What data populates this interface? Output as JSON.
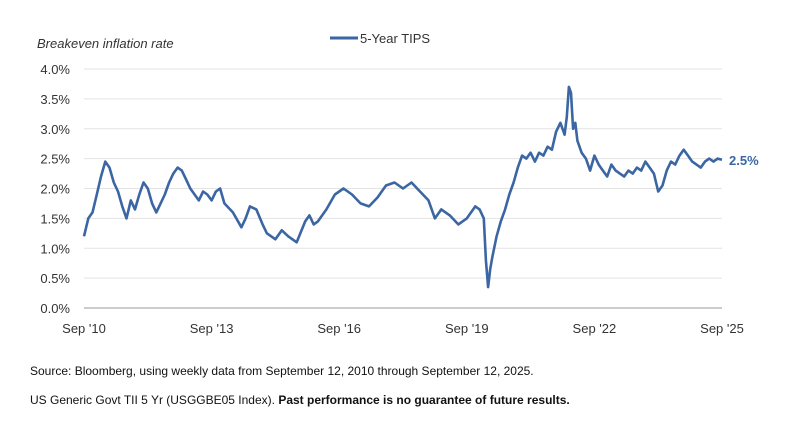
{
  "chart_data": {
    "type": "line",
    "ylabel": "Breakeven inflation rate",
    "xlabel": "",
    "title": "",
    "legend": {
      "position": "top-center",
      "entries": [
        "5-Year TIPS"
      ]
    },
    "ylim": [
      0.0,
      4.0
    ],
    "y_ticks": [
      "0.0%",
      "0.5%",
      "1.0%",
      "1.5%",
      "2.0%",
      "2.5%",
      "3.0%",
      "3.5%",
      "4.0%"
    ],
    "y_tick_values": [
      0.0,
      0.5,
      1.0,
      1.5,
      2.0,
      2.5,
      3.0,
      3.5,
      4.0
    ],
    "xlim": [
      2010.7,
      2025.7
    ],
    "x_ticks": [
      "Sep '10",
      "Sep '13",
      "Sep '16",
      "Sep '19",
      "Sep '22",
      "Sep '25"
    ],
    "x_tick_values": [
      2010.7,
      2013.7,
      2016.7,
      2019.7,
      2022.7,
      2025.7
    ],
    "grid": "horizontal",
    "color": "#3b66a3",
    "end_label": "2.5%",
    "series": [
      {
        "name": "5-Year TIPS",
        "x": [
          2010.7,
          2010.8,
          2010.9,
          2011.0,
          2011.1,
          2011.2,
          2011.3,
          2011.4,
          2011.5,
          2011.6,
          2011.7,
          2011.8,
          2011.9,
          2012.0,
          2012.1,
          2012.2,
          2012.3,
          2012.4,
          2012.5,
          2012.6,
          2012.7,
          2012.8,
          2012.9,
          2013.0,
          2013.1,
          2013.2,
          2013.3,
          2013.4,
          2013.5,
          2013.6,
          2013.7,
          2013.8,
          2013.9,
          2014.0,
          2014.2,
          2014.4,
          2014.5,
          2014.6,
          2014.75,
          2014.9,
          2015.0,
          2015.2,
          2015.35,
          2015.5,
          2015.7,
          2015.9,
          2016.0,
          2016.1,
          2016.2,
          2016.4,
          2016.6,
          2016.8,
          2017.0,
          2017.2,
          2017.4,
          2017.6,
          2017.8,
          2018.0,
          2018.2,
          2018.4,
          2018.6,
          2018.8,
          2018.95,
          2019.1,
          2019.3,
          2019.5,
          2019.7,
          2019.9,
          2020.0,
          2020.1,
          2020.15,
          2020.2,
          2020.25,
          2020.3,
          2020.4,
          2020.5,
          2020.6,
          2020.7,
          2020.8,
          2020.9,
          2021.0,
          2021.1,
          2021.2,
          2021.3,
          2021.4,
          2021.5,
          2021.6,
          2021.7,
          2021.8,
          2021.9,
          2022.0,
          2022.05,
          2022.1,
          2022.15,
          2022.2,
          2022.25,
          2022.3,
          2022.4,
          2022.5,
          2022.6,
          2022.7,
          2022.8,
          2022.9,
          2023.0,
          2023.1,
          2023.2,
          2023.3,
          2023.4,
          2023.5,
          2023.6,
          2023.7,
          2023.8,
          2023.9,
          2024.0,
          2024.1,
          2024.2,
          2024.3,
          2024.4,
          2024.5,
          2024.6,
          2024.7,
          2024.8,
          2024.9,
          2025.0,
          2025.1,
          2025.2,
          2025.3,
          2025.4,
          2025.5,
          2025.6,
          2025.7
        ],
        "values": [
          1.2,
          1.5,
          1.6,
          1.9,
          2.2,
          2.45,
          2.35,
          2.1,
          1.95,
          1.7,
          1.5,
          1.8,
          1.65,
          1.9,
          2.1,
          2.0,
          1.75,
          1.6,
          1.75,
          1.9,
          2.1,
          2.25,
          2.35,
          2.3,
          2.15,
          2.0,
          1.9,
          1.8,
          1.95,
          1.9,
          1.8,
          1.95,
          2.0,
          1.75,
          1.6,
          1.35,
          1.5,
          1.7,
          1.65,
          1.4,
          1.25,
          1.15,
          1.3,
          1.2,
          1.1,
          1.45,
          1.55,
          1.4,
          1.45,
          1.65,
          1.9,
          2.0,
          1.9,
          1.75,
          1.7,
          1.85,
          2.05,
          2.1,
          2.0,
          2.1,
          1.95,
          1.8,
          1.5,
          1.65,
          1.55,
          1.4,
          1.5,
          1.7,
          1.65,
          1.5,
          0.8,
          0.35,
          0.65,
          0.85,
          1.2,
          1.45,
          1.65,
          1.9,
          2.1,
          2.35,
          2.55,
          2.5,
          2.6,
          2.45,
          2.6,
          2.55,
          2.7,
          2.65,
          2.95,
          3.1,
          2.9,
          3.2,
          3.7,
          3.6,
          3.0,
          3.1,
          2.8,
          2.6,
          2.5,
          2.3,
          2.55,
          2.4,
          2.3,
          2.2,
          2.4,
          2.3,
          2.25,
          2.2,
          2.3,
          2.25,
          2.35,
          2.3,
          2.45,
          2.35,
          2.25,
          1.95,
          2.05,
          2.3,
          2.45,
          2.4,
          2.55,
          2.65,
          2.55,
          2.45,
          2.4,
          2.35,
          2.45,
          2.5,
          2.45,
          2.5,
          2.48
        ]
      }
    ]
  },
  "footer": {
    "source": "Source: Bloomberg, using weekly data from September 12, 2010 through September 12, 2025.",
    "note_prefix": "US Generic Govt TII 5 Yr (USGGBE05 Index). ",
    "note_bold": "Past performance is no guarantee of future results."
  }
}
